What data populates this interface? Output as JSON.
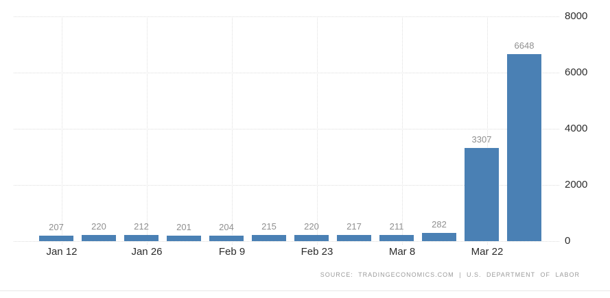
{
  "chart_data": {
    "type": "bar",
    "title": "",
    "xlabel": "",
    "ylabel": "",
    "values": [
      207,
      220,
      212,
      201,
      204,
      215,
      220,
      217,
      211,
      282,
      3307,
      6648
    ],
    "value_labels": [
      "207",
      "220",
      "212",
      "201",
      "204",
      "215",
      "220",
      "217",
      "211",
      "282",
      "3307",
      "6648"
    ],
    "x_tick_labels": [
      "Jan 12",
      "Jan 26",
      "Feb 9",
      "Feb 23",
      "Mar 8",
      "Mar 22"
    ],
    "x_tick_bar_indices": [
      0,
      2,
      4,
      6,
      8,
      10
    ],
    "y_tick_labels": [
      "0",
      "2000",
      "4000",
      "6000",
      "8000"
    ],
    "y_ticks": [
      0,
      2000,
      4000,
      6000,
      8000
    ],
    "ylim": [
      0,
      8000
    ],
    "y_axis_position": "right",
    "legend": "none",
    "grid": "dotted horizontal and vertical",
    "colors": {
      "bar": "#4a80b4",
      "value_label": "#8f8f8f",
      "axis_label": "#2b2b2b",
      "gridline": "#dcdcdc"
    }
  },
  "source": {
    "text": "SOURCE: TRADINGECONOMICS.COM | U.S. DEPARTMENT OF LABOR"
  }
}
